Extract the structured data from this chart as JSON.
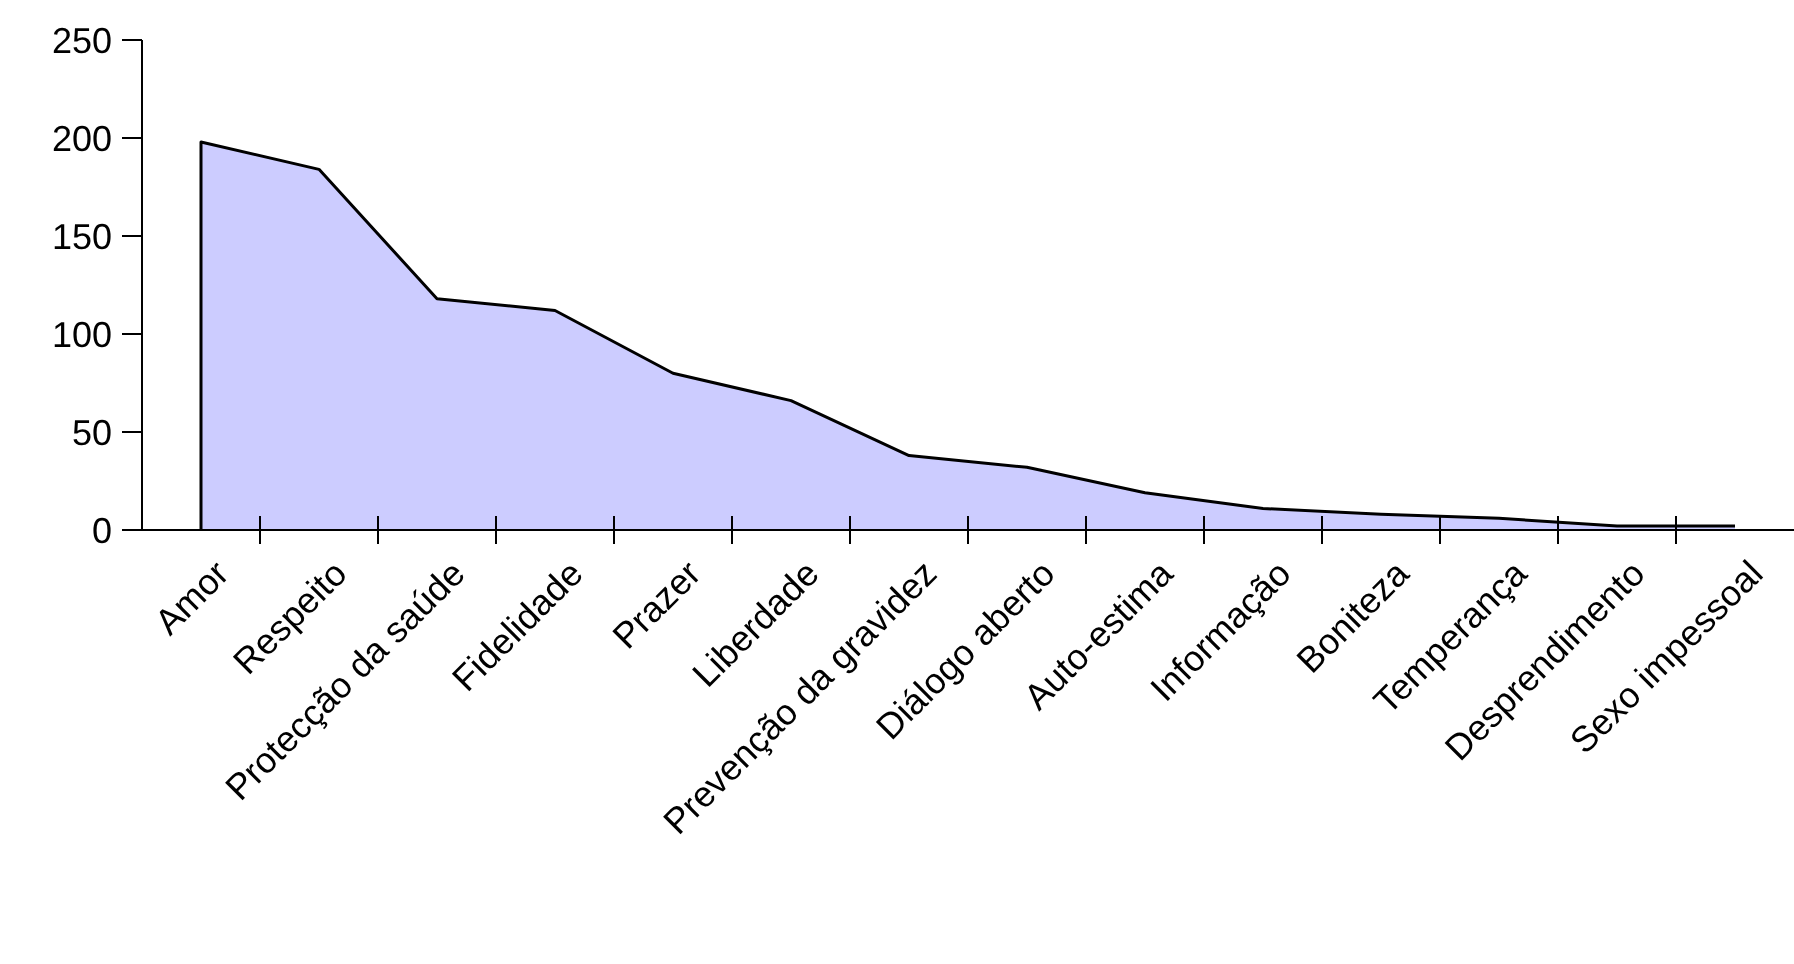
{
  "chart_data": {
    "type": "area",
    "categories": [
      "Amor",
      "Respeito",
      "Protecção da saúde",
      "Fidelidade",
      "Prazer",
      "Liberdade",
      "Prevenção da gravidez",
      "Diálogo aberto",
      "Auto-estima",
      "Informação",
      "Boniteza",
      "Temperança",
      "Desprendimento",
      "Sexo impessoal"
    ],
    "values": [
      198,
      184,
      118,
      112,
      80,
      66,
      38,
      32,
      19,
      11,
      8,
      6,
      2,
      2
    ],
    "color": "#ccccff",
    "ylim": [
      0,
      250
    ],
    "yticks": [
      0,
      50,
      100,
      150,
      200,
      250
    ],
    "grid": false
  }
}
